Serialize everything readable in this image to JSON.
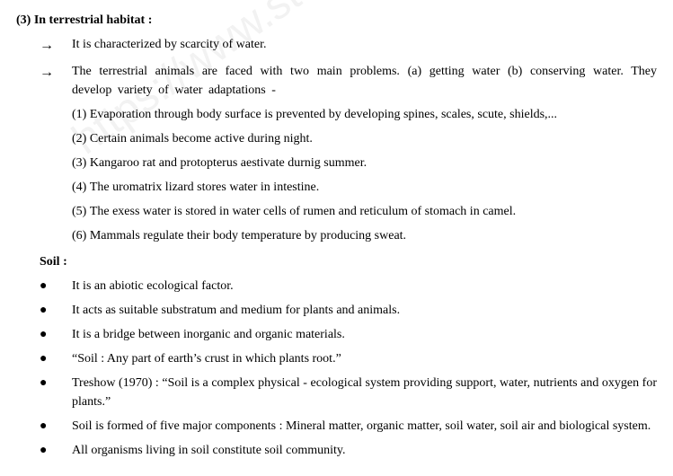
{
  "heading": "(3) In terrestrial habitat :",
  "arrows": [
    {
      "text": "It is characterized by scarcity of water.",
      "spaced": false
    },
    {
      "text": "The terrestrial animals are faced with two main problems. (a) getting water (b) conserving water. They develop variety of water adaptations -",
      "spaced": true
    }
  ],
  "numbered": [
    {
      "n": "(1)",
      "text": "Evaporation through body surface is prevented by developing spines, scales, scute, shields,..."
    },
    {
      "n": "(2)",
      "text": "Certain animals become active during night."
    },
    {
      "n": "(3)",
      "text": "Kangaroo rat and protopterus aestivate durnig summer."
    },
    {
      "n": "(4)",
      "text": "The uromatrix lizard stores water in intestine."
    },
    {
      "n": "(5)",
      "text": "The exess water is stored in water cells of rumen and reticulum of stomach in camel."
    },
    {
      "n": "(6)",
      "text": "Mammals regulate their body temperature by producing sweat."
    }
  ],
  "subheading": "Soil :",
  "bullets": [
    "It is an abiotic ecological factor.",
    "It acts as suitable substratum and medium for plants and animals.",
    "It is a bridge between inorganic and organic materials.",
    "“Soil : Any part of earth’s crust in which plants root.”",
    "Treshow (1970) : “Soil is a complex physical - ecological system providing support, water, nutrients and oxygen for plants.”",
    "Soil is formed of five major components : Mineral matter, organic matter, soil water, soil air and biological system.",
    "All organisms living in soil constitute soil community."
  ],
  "watermark": "https://www.st"
}
